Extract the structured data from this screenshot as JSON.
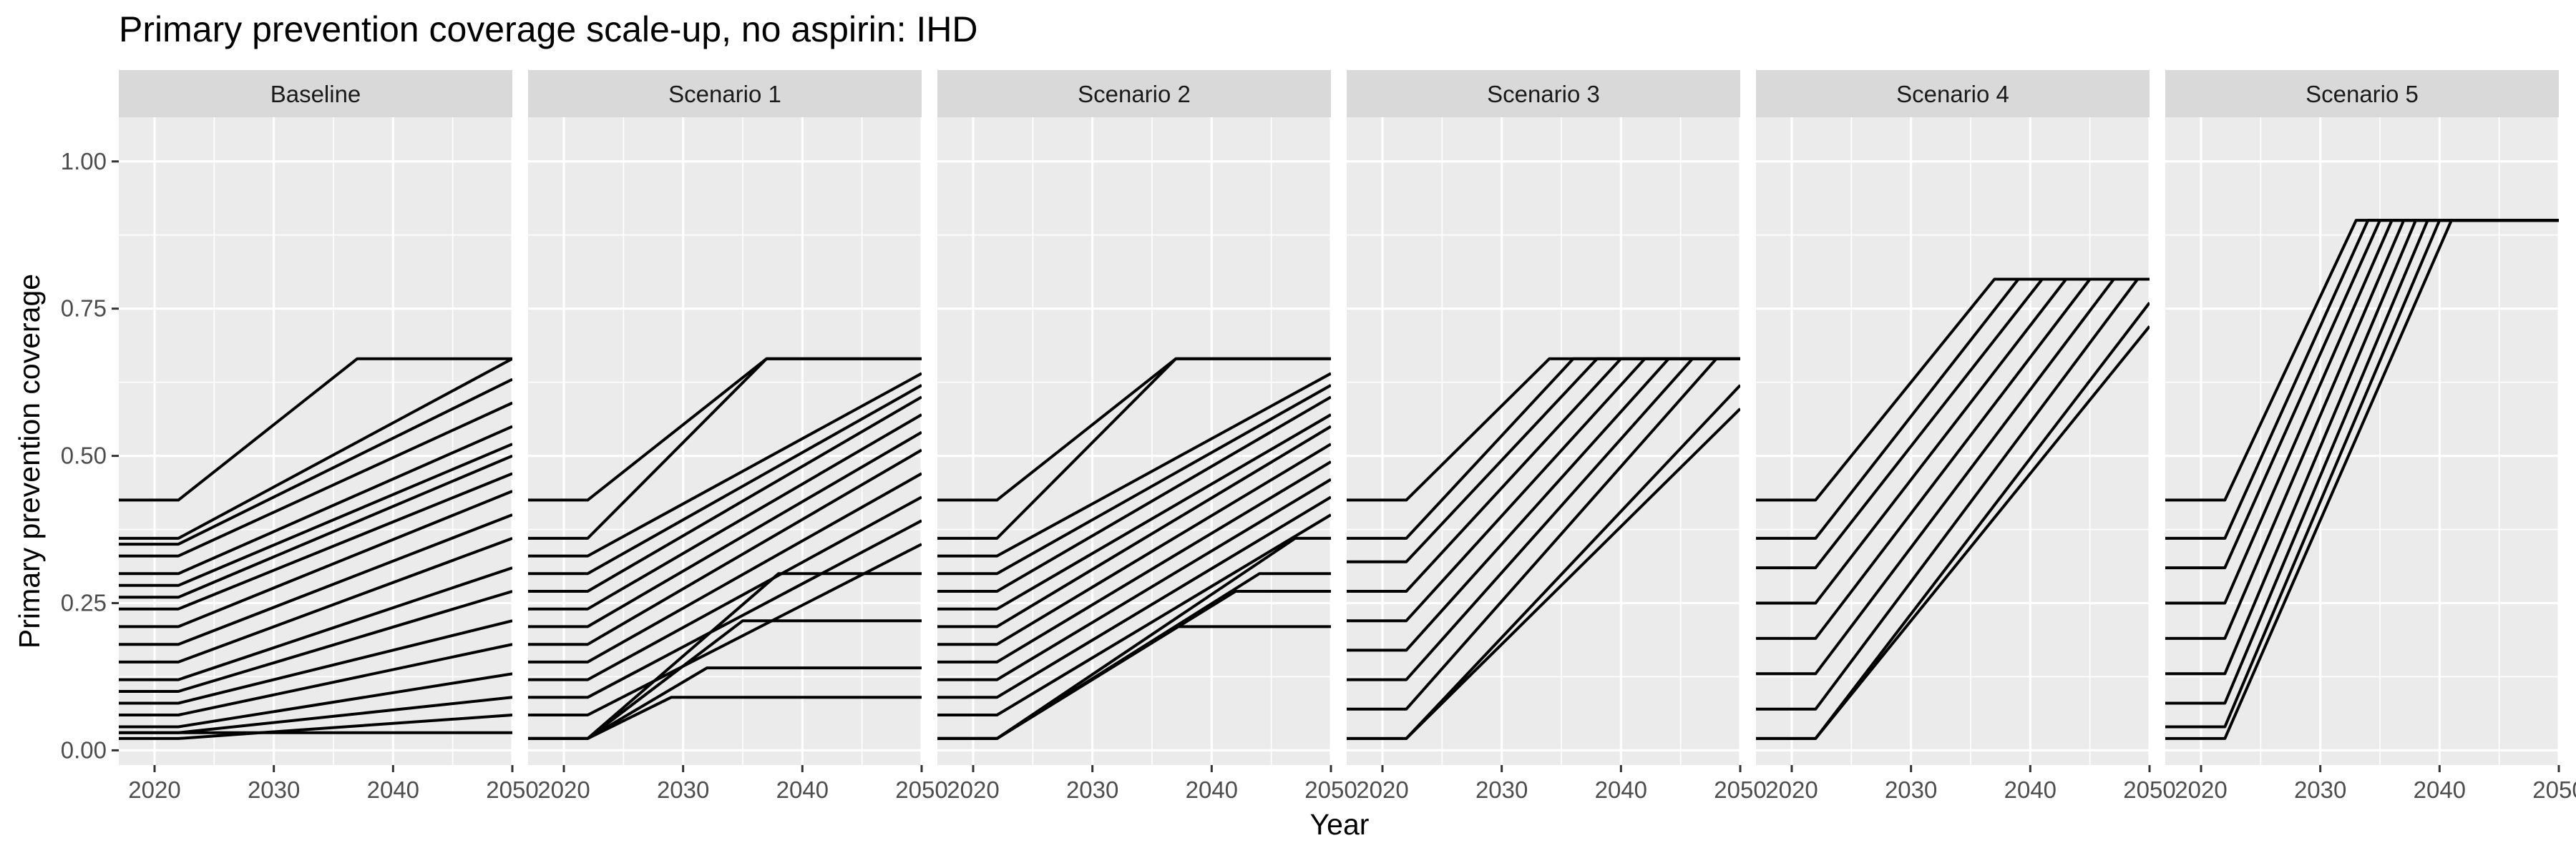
{
  "chart_data": {
    "type": "line",
    "title": "Primary prevention coverage scale-up, no aspirin: IHD",
    "xlabel": "Year",
    "ylabel": "Primary prevention coverage",
    "xlim": [
      2017,
      2050
    ],
    "ylim": [
      -0.025,
      1.075
    ],
    "x_ticks": [
      2020,
      2030,
      2040,
      2050
    ],
    "x_tick_labels": [
      "2020",
      "2030",
      "2040",
      "2050"
    ],
    "y_ticks": [
      0,
      0.25,
      0.5,
      0.75,
      1
    ],
    "y_tick_labels": [
      "0.00",
      "0.25",
      "0.50",
      "0.75",
      "1.00"
    ],
    "grid": true,
    "line_color": "#000000",
    "panel_background": "#ebebeb",
    "strip_background": "#d9d9d9",
    "panels": [
      {
        "label": "Baseline",
        "series": [
          {
            "x": [
              2017,
              2022,
              2037,
              2050
            ],
            "values": [
              0.425,
              0.425,
              0.665,
              0.665
            ]
          },
          {
            "x": [
              2017,
              2022,
              2050
            ],
            "values": [
              0.36,
              0.36,
              0.665
            ]
          },
          {
            "x": [
              2017,
              2022,
              2050
            ],
            "values": [
              0.35,
              0.35,
              0.63
            ]
          },
          {
            "x": [
              2017,
              2022,
              2050
            ],
            "values": [
              0.33,
              0.33,
              0.59
            ]
          },
          {
            "x": [
              2017,
              2022,
              2050
            ],
            "values": [
              0.3,
              0.3,
              0.55
            ]
          },
          {
            "x": [
              2017,
              2022,
              2050
            ],
            "values": [
              0.28,
              0.28,
              0.52
            ]
          },
          {
            "x": [
              2017,
              2022,
              2050
            ],
            "values": [
              0.26,
              0.26,
              0.5
            ]
          },
          {
            "x": [
              2017,
              2022,
              2050
            ],
            "values": [
              0.24,
              0.24,
              0.47
            ]
          },
          {
            "x": [
              2017,
              2022,
              2050
            ],
            "values": [
              0.21,
              0.21,
              0.44
            ]
          },
          {
            "x": [
              2017,
              2022,
              2050
            ],
            "values": [
              0.18,
              0.18,
              0.4
            ]
          },
          {
            "x": [
              2017,
              2022,
              2050
            ],
            "values": [
              0.15,
              0.15,
              0.36
            ]
          },
          {
            "x": [
              2017,
              2022,
              2050
            ],
            "values": [
              0.12,
              0.12,
              0.31
            ]
          },
          {
            "x": [
              2017,
              2022,
              2050
            ],
            "values": [
              0.1,
              0.1,
              0.27
            ]
          },
          {
            "x": [
              2017,
              2022,
              2050
            ],
            "values": [
              0.08,
              0.08,
              0.22
            ]
          },
          {
            "x": [
              2017,
              2022,
              2050
            ],
            "values": [
              0.06,
              0.06,
              0.18
            ]
          },
          {
            "x": [
              2017,
              2022,
              2050
            ],
            "values": [
              0.04,
              0.04,
              0.13
            ]
          },
          {
            "x": [
              2017,
              2022,
              2050
            ],
            "values": [
              0.03,
              0.03,
              0.09
            ]
          },
          {
            "x": [
              2017,
              2022,
              2050
            ],
            "values": [
              0.02,
              0.02,
              0.06
            ]
          },
          {
            "x": [
              2017,
              2022,
              2050
            ],
            "values": [
              0.03,
              0.03,
              0.03
            ]
          }
        ]
      },
      {
        "label": "Scenario 1",
        "series": [
          {
            "x": [
              2017,
              2022,
              2037,
              2050
            ],
            "values": [
              0.425,
              0.425,
              0.665,
              0.665
            ]
          },
          {
            "x": [
              2017,
              2022,
              2037,
              2050
            ],
            "values": [
              0.36,
              0.36,
              0.665,
              0.665
            ]
          },
          {
            "x": [
              2017,
              2022,
              2050
            ],
            "values": [
              0.33,
              0.33,
              0.64
            ]
          },
          {
            "x": [
              2017,
              2022,
              2050
            ],
            "values": [
              0.3,
              0.3,
              0.62
            ]
          },
          {
            "x": [
              2017,
              2022,
              2050
            ],
            "values": [
              0.27,
              0.27,
              0.6
            ]
          },
          {
            "x": [
              2017,
              2022,
              2050
            ],
            "values": [
              0.24,
              0.24,
              0.57
            ]
          },
          {
            "x": [
              2017,
              2022,
              2050
            ],
            "values": [
              0.21,
              0.21,
              0.54
            ]
          },
          {
            "x": [
              2017,
              2022,
              2050
            ],
            "values": [
              0.18,
              0.18,
              0.51
            ]
          },
          {
            "x": [
              2017,
              2022,
              2050
            ],
            "values": [
              0.15,
              0.15,
              0.47
            ]
          },
          {
            "x": [
              2017,
              2022,
              2050
            ],
            "values": [
              0.12,
              0.12,
              0.43
            ]
          },
          {
            "x": [
              2017,
              2022,
              2050
            ],
            "values": [
              0.09,
              0.09,
              0.39
            ]
          },
          {
            "x": [
              2017,
              2022,
              2050
            ],
            "values": [
              0.06,
              0.06,
              0.35
            ]
          },
          {
            "x": [
              2017,
              2022,
              2038,
              2050
            ],
            "values": [
              0.02,
              0.02,
              0.3,
              0.3
            ]
          },
          {
            "x": [
              2017,
              2022,
              2035,
              2050
            ],
            "values": [
              0.02,
              0.02,
              0.22,
              0.22
            ]
          },
          {
            "x": [
              2017,
              2022,
              2032,
              2050
            ],
            "values": [
              0.02,
              0.02,
              0.14,
              0.14
            ]
          },
          {
            "x": [
              2017,
              2022,
              2029,
              2050
            ],
            "values": [
              0.02,
              0.02,
              0.09,
              0.09
            ]
          }
        ]
      },
      {
        "label": "Scenario 2",
        "series": [
          {
            "x": [
              2017,
              2022,
              2037,
              2050
            ],
            "values": [
              0.425,
              0.425,
              0.665,
              0.665
            ]
          },
          {
            "x": [
              2017,
              2022,
              2037,
              2050
            ],
            "values": [
              0.36,
              0.36,
              0.665,
              0.665
            ]
          },
          {
            "x": [
              2017,
              2022,
              2050
            ],
            "values": [
              0.33,
              0.33,
              0.64
            ]
          },
          {
            "x": [
              2017,
              2022,
              2050
            ],
            "values": [
              0.3,
              0.3,
              0.62
            ]
          },
          {
            "x": [
              2017,
              2022,
              2050
            ],
            "values": [
              0.27,
              0.27,
              0.6
            ]
          },
          {
            "x": [
              2017,
              2022,
              2050
            ],
            "values": [
              0.24,
              0.24,
              0.57
            ]
          },
          {
            "x": [
              2017,
              2022,
              2050
            ],
            "values": [
              0.21,
              0.21,
              0.55
            ]
          },
          {
            "x": [
              2017,
              2022,
              2050
            ],
            "values": [
              0.18,
              0.18,
              0.52
            ]
          },
          {
            "x": [
              2017,
              2022,
              2050
            ],
            "values": [
              0.15,
              0.15,
              0.49
            ]
          },
          {
            "x": [
              2017,
              2022,
              2050
            ],
            "values": [
              0.12,
              0.12,
              0.46
            ]
          },
          {
            "x": [
              2017,
              2022,
              2050
            ],
            "values": [
              0.09,
              0.09,
              0.43
            ]
          },
          {
            "x": [
              2017,
              2022,
              2050
            ],
            "values": [
              0.06,
              0.06,
              0.4
            ]
          },
          {
            "x": [
              2017,
              2022,
              2047,
              2050
            ],
            "values": [
              0.02,
              0.02,
              0.36,
              0.36
            ]
          },
          {
            "x": [
              2017,
              2022,
              2044,
              2050
            ],
            "values": [
              0.02,
              0.02,
              0.3,
              0.3
            ]
          },
          {
            "x": [
              2017,
              2022,
              2042,
              2050
            ],
            "values": [
              0.02,
              0.02,
              0.27,
              0.27
            ]
          },
          {
            "x": [
              2017,
              2022,
              2037,
              2050
            ],
            "values": [
              0.02,
              0.02,
              0.21,
              0.21
            ]
          }
        ]
      },
      {
        "label": "Scenario 3",
        "series": [
          {
            "x": [
              2017,
              2022,
              2034,
              2050
            ],
            "values": [
              0.425,
              0.425,
              0.665,
              0.665
            ]
          },
          {
            "x": [
              2017,
              2022,
              2036,
              2050
            ],
            "values": [
              0.36,
              0.36,
              0.665,
              0.665
            ]
          },
          {
            "x": [
              2017,
              2022,
              2038,
              2050
            ],
            "values": [
              0.32,
              0.32,
              0.665,
              0.665
            ]
          },
          {
            "x": [
              2017,
              2022,
              2040,
              2050
            ],
            "values": [
              0.27,
              0.27,
              0.665,
              0.665
            ]
          },
          {
            "x": [
              2017,
              2022,
              2042,
              2050
            ],
            "values": [
              0.22,
              0.22,
              0.665,
              0.665
            ]
          },
          {
            "x": [
              2017,
              2022,
              2044,
              2050
            ],
            "values": [
              0.17,
              0.17,
              0.665,
              0.665
            ]
          },
          {
            "x": [
              2017,
              2022,
              2046,
              2050
            ],
            "values": [
              0.12,
              0.12,
              0.665,
              0.665
            ]
          },
          {
            "x": [
              2017,
              2022,
              2048,
              2050
            ],
            "values": [
              0.07,
              0.07,
              0.665,
              0.665
            ]
          },
          {
            "x": [
              2017,
              2022,
              2050
            ],
            "values": [
              0.02,
              0.02,
              0.62
            ]
          },
          {
            "x": [
              2017,
              2022,
              2050
            ],
            "values": [
              0.02,
              0.02,
              0.58
            ]
          }
        ]
      },
      {
        "label": "Scenario 4",
        "series": [
          {
            "x": [
              2017,
              2022,
              2037,
              2050
            ],
            "values": [
              0.425,
              0.425,
              0.8,
              0.8
            ]
          },
          {
            "x": [
              2017,
              2022,
              2039,
              2050
            ],
            "values": [
              0.36,
              0.36,
              0.8,
              0.8
            ]
          },
          {
            "x": [
              2017,
              2022,
              2041,
              2050
            ],
            "values": [
              0.31,
              0.31,
              0.8,
              0.8
            ]
          },
          {
            "x": [
              2017,
              2022,
              2043,
              2050
            ],
            "values": [
              0.25,
              0.25,
              0.8,
              0.8
            ]
          },
          {
            "x": [
              2017,
              2022,
              2045,
              2050
            ],
            "values": [
              0.19,
              0.19,
              0.8,
              0.8
            ]
          },
          {
            "x": [
              2017,
              2022,
              2047,
              2050
            ],
            "values": [
              0.13,
              0.13,
              0.8,
              0.8
            ]
          },
          {
            "x": [
              2017,
              2022,
              2049,
              2050
            ],
            "values": [
              0.07,
              0.07,
              0.8,
              0.8
            ]
          },
          {
            "x": [
              2017,
              2022,
              2050
            ],
            "values": [
              0.02,
              0.02,
              0.76
            ]
          },
          {
            "x": [
              2017,
              2022,
              2050
            ],
            "values": [
              0.02,
              0.02,
              0.72
            ]
          }
        ]
      },
      {
        "label": "Scenario 5",
        "series": [
          {
            "x": [
              2017,
              2022,
              2033,
              2050
            ],
            "values": [
              0.425,
              0.425,
              0.9,
              0.9
            ]
          },
          {
            "x": [
              2017,
              2022,
              2034,
              2050
            ],
            "values": [
              0.36,
              0.36,
              0.9,
              0.9
            ]
          },
          {
            "x": [
              2017,
              2022,
              2035,
              2050
            ],
            "values": [
              0.31,
              0.31,
              0.9,
              0.9
            ]
          },
          {
            "x": [
              2017,
              2022,
              2036,
              2050
            ],
            "values": [
              0.25,
              0.25,
              0.9,
              0.9
            ]
          },
          {
            "x": [
              2017,
              2022,
              2037,
              2050
            ],
            "values": [
              0.19,
              0.19,
              0.9,
              0.9
            ]
          },
          {
            "x": [
              2017,
              2022,
              2038,
              2050
            ],
            "values": [
              0.13,
              0.13,
              0.9,
              0.9
            ]
          },
          {
            "x": [
              2017,
              2022,
              2039,
              2050
            ],
            "values": [
              0.08,
              0.08,
              0.9,
              0.9
            ]
          },
          {
            "x": [
              2017,
              2022,
              2040,
              2050
            ],
            "values": [
              0.04,
              0.04,
              0.9,
              0.9
            ]
          },
          {
            "x": [
              2017,
              2022,
              2041,
              2050
            ],
            "values": [
              0.02,
              0.02,
              0.9,
              0.9
            ]
          }
        ]
      }
    ]
  }
}
